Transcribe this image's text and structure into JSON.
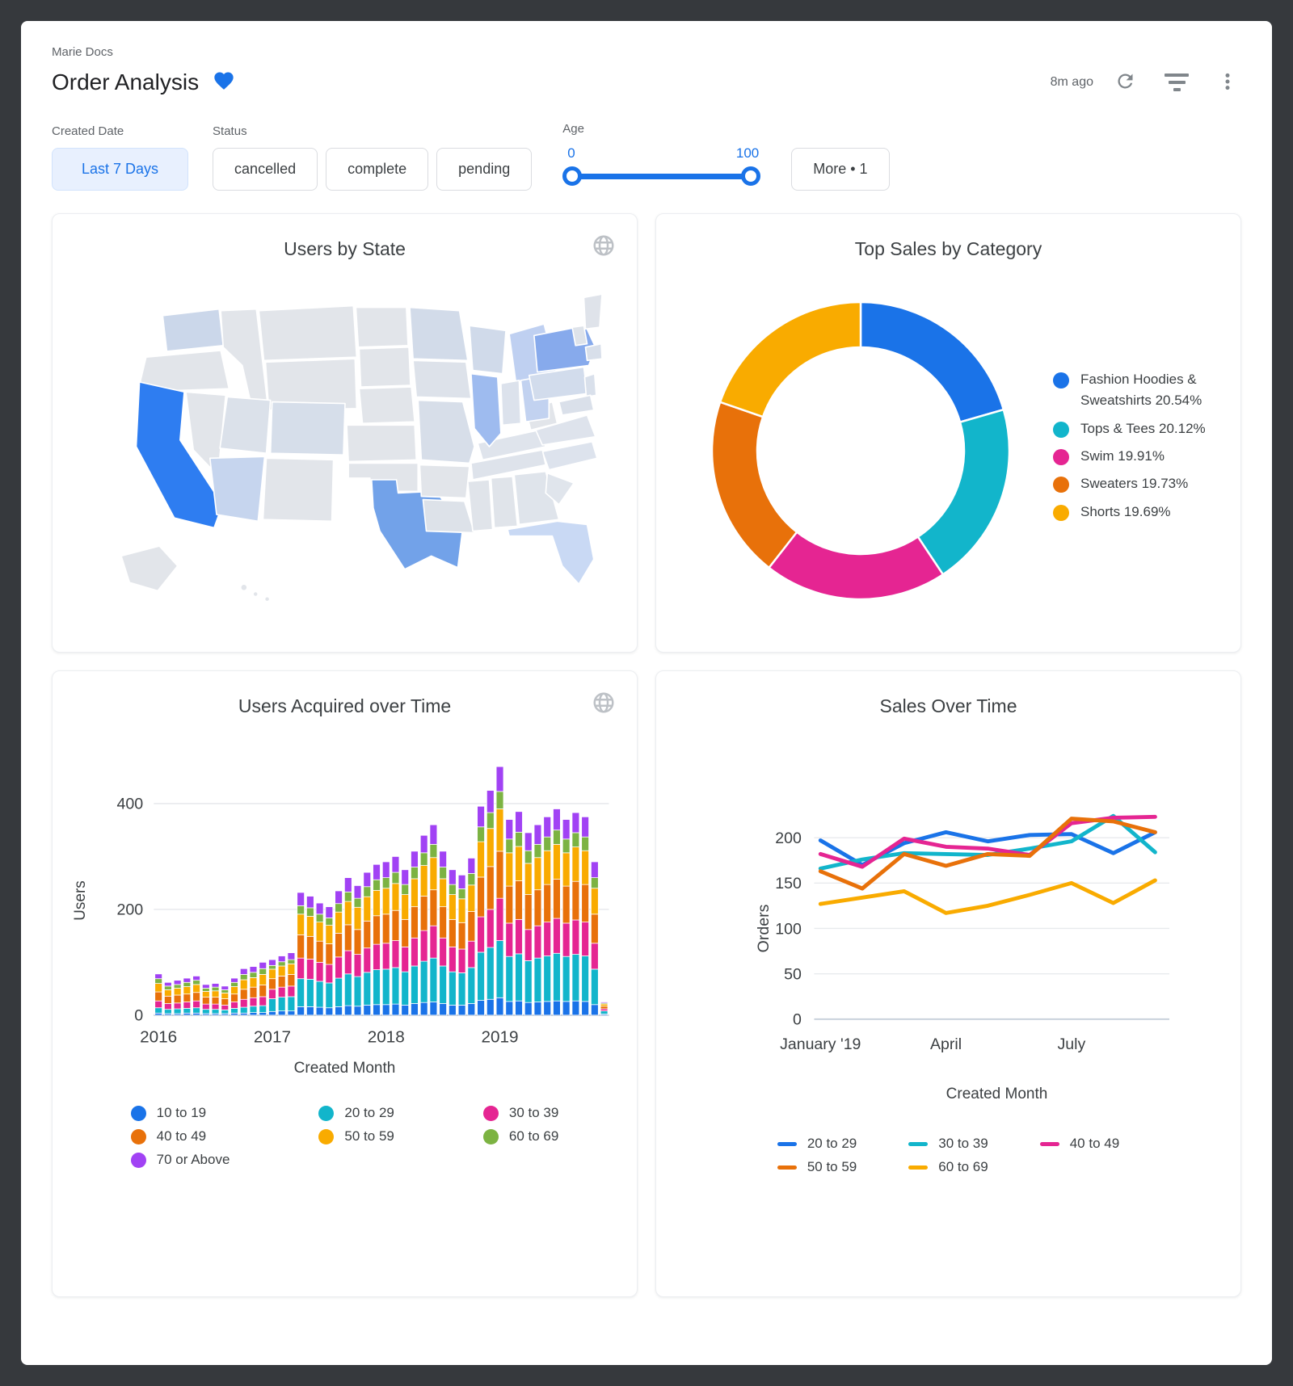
{
  "header": {
    "breadcrumb": "Marie Docs",
    "title": "Order Analysis",
    "updated": "8m ago"
  },
  "filters": {
    "created_date": {
      "label": "Created Date",
      "value": "Last 7 Days"
    },
    "status": {
      "label": "Status",
      "options": [
        "cancelled",
        "complete",
        "pending"
      ]
    },
    "age": {
      "label": "Age",
      "min_label": "0",
      "max_label": "100"
    },
    "more_label": "More • 1"
  },
  "colors": {
    "accent": "#1A73E8",
    "series": {
      "blue": "#1A73E8",
      "teal": "#12B5CB",
      "pink": "#E52592",
      "orange": "#E8710A",
      "yellow": "#F9AB00",
      "green": "#7CB342",
      "purple": "#A142F4"
    },
    "map_default": "#E2E5EA",
    "grid": "#E8EAED",
    "baseline": "#C6CFDA",
    "tick_text": "#3C4043"
  },
  "cards": {
    "users_by_state": {
      "title": "Users by State",
      "default_fill": "#E2E5EA",
      "state_fills": {
        "ca": "#2E7DF1",
        "tx": "#72A2E9",
        "ny": "#87AAEC",
        "il": "#9EBBEF",
        "mi": "#BFD0F1",
        "oh": "#C2D2F0",
        "fl": "#C9D9F4",
        "az": "#C6D5EE",
        "wa": "#CBD7EA",
        "wi": "#D0DAEA",
        "mn": "#D2DBE9",
        "pa": "#D2DCEC",
        "co": "#D6DEEA",
        "mo": "#D7DEE9",
        "ia": "#DDE2EA",
        "in": "#DCE2EC",
        "ut": "#DBE1EA",
        "nc": "#DDE3ED",
        "va": "#DEE3EC",
        "tn": "#DEE3EB",
        "ky": "#DFE4EC",
        "ga": "#DFE4EB",
        "sc": "#E0E5EC",
        "la": "#DDE2E9",
        "md": "#DAE0EA",
        "nj": "#D9E0EB",
        "ma": "#D8DFEA",
        "me": "#DFE3EA",
        "nh": "#DEE3EA",
        "al": "#E0E4EA",
        "ms": "#E0E4EA"
      }
    },
    "top_sales": {
      "title": "Top Sales by Category"
    },
    "users_acquired": {
      "title": "Users Acquired over Time",
      "ylabel": "Users",
      "xlabel": "Created Month"
    },
    "sales_over_time": {
      "title": "Sales Over Time",
      "ylabel": "Orders",
      "xlabel": "Created Month"
    }
  },
  "legends": {
    "donut": [
      {
        "label": "Fashion Hoodies & Sweatshirts",
        "pct": "20.54",
        "color": "#1A73E8"
      },
      {
        "label": "Tops & Tees",
        "pct": "20.12",
        "color": "#12B5CB"
      },
      {
        "label": "Swim",
        "pct": "19.91",
        "color": "#E52592"
      },
      {
        "label": "Sweaters",
        "pct": "19.73",
        "color": "#E8710A"
      },
      {
        "label": "Shorts",
        "pct": "19.69",
        "color": "#F9AB00"
      }
    ],
    "bars": {
      "swatch": "dot",
      "columns": [
        [
          {
            "label": "10 to 19",
            "color": "#1A73E8"
          },
          {
            "label": "40 to 49",
            "color": "#E8710A"
          },
          {
            "label": "70 or Above",
            "color": "#A142F4"
          }
        ],
        [
          {
            "label": "20 to 29",
            "color": "#12B5CB"
          },
          {
            "label": "50 to 59",
            "color": "#F9AB00"
          }
        ],
        [
          {
            "label": "30 to 39",
            "color": "#E52592"
          },
          {
            "label": "60 to 69",
            "color": "#7CB342"
          }
        ]
      ]
    },
    "lines": {
      "swatch": "dash",
      "columns": [
        [
          {
            "label": "20 to 29",
            "color": "#1A73E8"
          },
          {
            "label": "50 to 59",
            "color": "#E8710A"
          }
        ],
        [
          {
            "label": "30 to 39",
            "color": "#12B5CB"
          },
          {
            "label": "60 to 69",
            "color": "#F9AB00"
          }
        ],
        [
          {
            "label": "40 to 49",
            "color": "#E52592"
          }
        ]
      ]
    }
  },
  "chart_data": {
    "top_sales": {
      "type": "pie",
      "title": "Top Sales by Category",
      "labels": [
        "Fashion Hoodies & Sweatshirts",
        "Tops & Tees",
        "Swim",
        "Sweaters",
        "Shorts"
      ],
      "values": [
        20.54,
        20.12,
        19.91,
        19.73,
        19.69
      ],
      "colors": [
        "#1A73E8",
        "#12B5CB",
        "#E52592",
        "#E8710A",
        "#F9AB00"
      ],
      "donut": true,
      "legend_position": "right"
    },
    "users_acquired": {
      "type": "bar",
      "stacked": true,
      "title": "Users Acquired over Time",
      "xlabel": "Created Month",
      "ylabel": "Users",
      "yticks": [
        0,
        200,
        400
      ],
      "ylim": [
        0,
        480
      ],
      "x_tick_labels": {
        "0": "2016",
        "12": "2017",
        "24": "2018",
        "36": "2019"
      },
      "months_span": "Jan 2016 - Dec 2019 (48 monthly bars)",
      "series": [
        {
          "name": "10 to 19",
          "color": "#1A73E8",
          "values": [
            4,
            3,
            3,
            4,
            4,
            3,
            3,
            3,
            4,
            4,
            5,
            5,
            7,
            8,
            8,
            16,
            16,
            15,
            14,
            16,
            18,
            17,
            19,
            20,
            20,
            21,
            19,
            22,
            24,
            25,
            22,
            19,
            19,
            22,
            28,
            30,
            33,
            26,
            27,
            24,
            25,
            26,
            27,
            26,
            27,
            26,
            20,
            2
          ]
        },
        {
          "name": "20 to 29",
          "color": "#12B5CB",
          "values": [
            10,
            8,
            9,
            9,
            10,
            8,
            8,
            7,
            9,
            11,
            12,
            13,
            24,
            26,
            27,
            53,
            52,
            49,
            47,
            54,
            60,
            56,
            62,
            66,
            67,
            69,
            63,
            71,
            78,
            83,
            71,
            63,
            61,
            68,
            91,
            98,
            108,
            85,
            89,
            79,
            83,
            86,
            90,
            85,
            88,
            86,
            67,
            6
          ]
        },
        {
          "name": "30 to 39",
          "color": "#E52592",
          "values": [
            13,
            11,
            11,
            12,
            13,
            10,
            10,
            9,
            12,
            15,
            16,
            17,
            18,
            19,
            20,
            39,
            38,
            36,
            35,
            40,
            44,
            42,
            46,
            48,
            49,
            51,
            47,
            53,
            58,
            61,
            53,
            47,
            45,
            50,
            67,
            72,
            80,
            63,
            65,
            59,
            61,
            64,
            66,
            63,
            65,
            64,
            49,
            4
          ]
        },
        {
          "name": "40 to 49",
          "color": "#E8710A",
          "values": [
            17,
            14,
            15,
            15,
            16,
            13,
            13,
            12,
            15,
            19,
            20,
            22,
            20,
            21,
            22,
            44,
            43,
            40,
            39,
            45,
            49,
            47,
            51,
            54,
            55,
            57,
            52,
            59,
            65,
            68,
            59,
            52,
            50,
            56,
            75,
            81,
            89,
            70,
            73,
            66,
            68,
            71,
            74,
            70,
            73,
            71,
            55,
            5
          ]
        },
        {
          "name": "50 to 59",
          "color": "#F9AB00",
          "values": [
            16,
            12,
            13,
            14,
            15,
            11,
            12,
            11,
            14,
            18,
            18,
            20,
            18,
            19,
            20,
            39,
            38,
            36,
            35,
            40,
            44,
            42,
            46,
            48,
            49,
            51,
            47,
            53,
            58,
            61,
            53,
            47,
            45,
            50,
            67,
            72,
            80,
            63,
            65,
            59,
            61,
            64,
            66,
            63,
            65,
            64,
            49,
            4
          ]
        },
        {
          "name": "60 to 69",
          "color": "#7CB342",
          "values": [
            9,
            7,
            7,
            8,
            8,
            6,
            7,
            6,
            8,
            10,
            10,
            11,
            7,
            8,
            8,
            16,
            16,
            15,
            14,
            16,
            18,
            17,
            19,
            20,
            20,
            21,
            19,
            22,
            24,
            25,
            22,
            19,
            19,
            22,
            28,
            30,
            33,
            26,
            27,
            24,
            25,
            26,
            27,
            26,
            27,
            26,
            20,
            2
          ]
        },
        {
          "name": "70 or Above",
          "color": "#A142F4",
          "values": [
            9,
            7,
            8,
            8,
            8,
            7,
            7,
            7,
            8,
            11,
            11,
            12,
            11,
            11,
            13,
            25,
            22,
            21,
            21,
            24,
            27,
            24,
            27,
            29,
            30,
            30,
            28,
            30,
            33,
            37,
            30,
            28,
            26,
            29,
            39,
            42,
            47,
            37,
            39,
            34,
            37,
            38,
            40,
            37,
            38,
            38,
            30,
            2
          ]
        }
      ]
    },
    "sales_over_time": {
      "type": "line",
      "title": "Sales Over Time",
      "xlabel": "Created Month",
      "ylabel": "Orders",
      "yticks": [
        0,
        50,
        100,
        150,
        200
      ],
      "ylim": [
        0,
        230
      ],
      "x_count": 9,
      "x_tick_labels": {
        "0": "January '19",
        "3": "April",
        "6": "July"
      },
      "series": [
        {
          "name": "20 to 29",
          "color": "#1A73E8",
          "values": [
            197,
            170,
            194,
            206,
            196,
            203,
            204,
            183,
            206
          ]
        },
        {
          "name": "30 to 39",
          "color": "#12B5CB",
          "values": [
            166,
            176,
            183,
            182,
            181,
            188,
            196,
            224,
            184
          ]
        },
        {
          "name": "40 to 49",
          "color": "#E52592",
          "values": [
            182,
            168,
            199,
            190,
            188,
            181,
            216,
            222,
            223
          ]
        },
        {
          "name": "50 to 59",
          "color": "#E8710A",
          "values": [
            163,
            144,
            182,
            169,
            182,
            180,
            221,
            218,
            206
          ]
        },
        {
          "name": "60 to 69",
          "color": "#F9AB00",
          "values": [
            127,
            134,
            141,
            117,
            125,
            137,
            150,
            128,
            153
          ]
        }
      ]
    },
    "users_by_state": {
      "type": "choropleth",
      "title": "Users by State",
      "highlighted_states": [
        {
          "state": "California",
          "level": "highest"
        },
        {
          "state": "Texas",
          "level": "high"
        },
        {
          "state": "New York",
          "level": "medium-high"
        },
        {
          "state": "Illinois",
          "level": "medium"
        },
        {
          "state": "Michigan",
          "level": "low"
        },
        {
          "state": "Ohio",
          "level": "low"
        },
        {
          "state": "Florida",
          "level": "low"
        },
        {
          "state": "Arizona",
          "level": "low"
        },
        {
          "state": "Washington",
          "level": "low"
        }
      ]
    }
  }
}
